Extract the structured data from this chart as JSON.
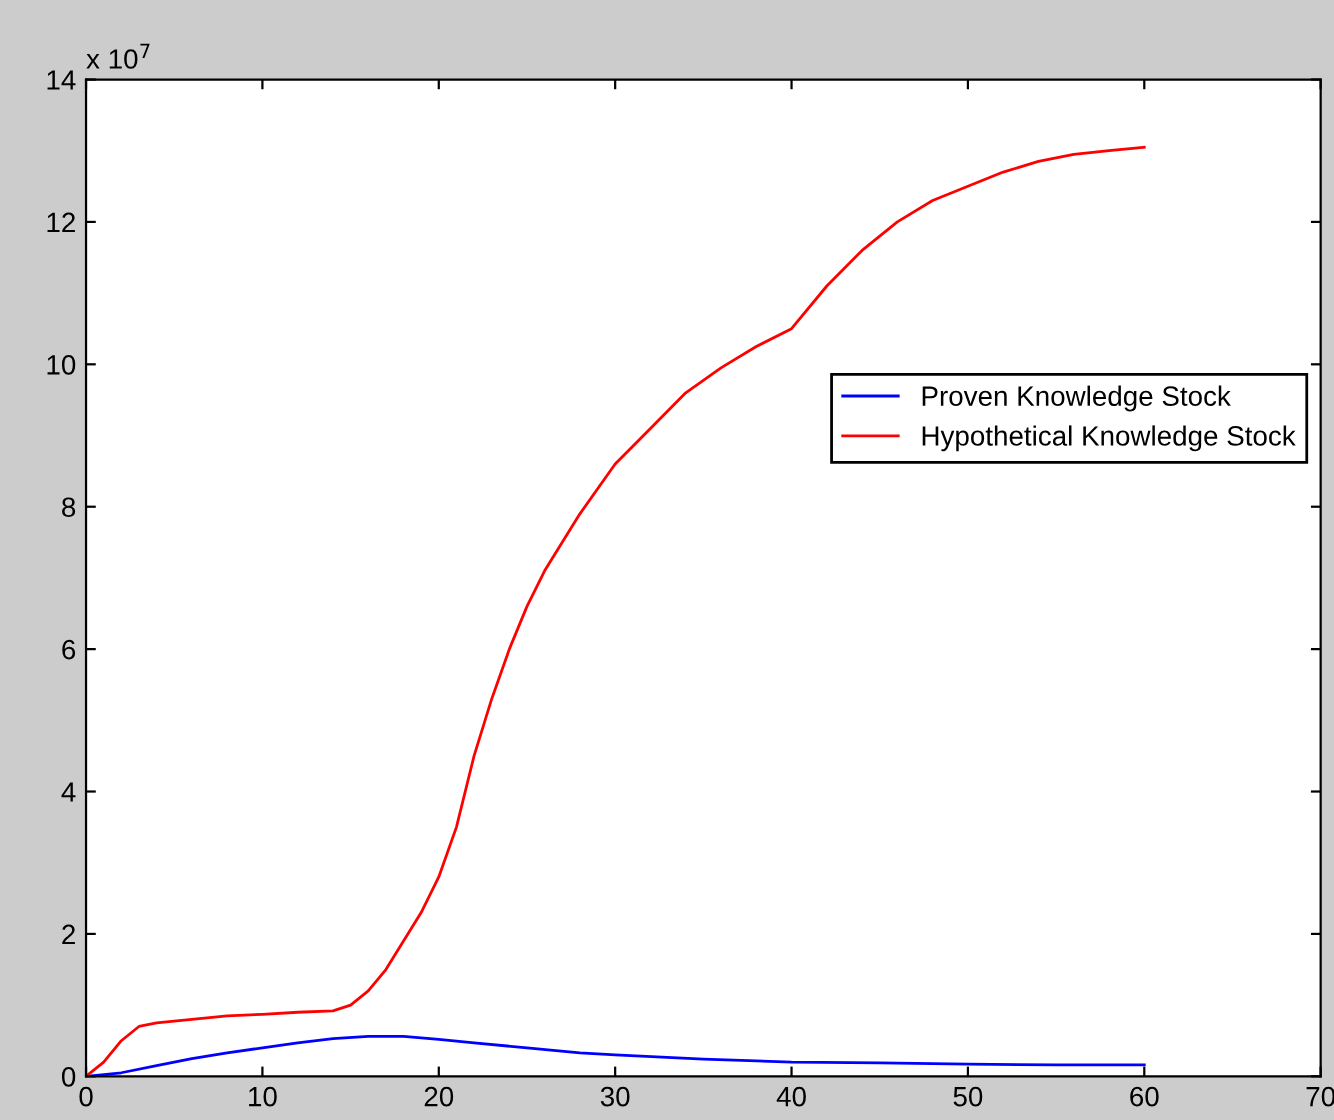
{
  "chart_data": {
    "type": "line",
    "annotations": [
      "x 10$^{7}$"
    ],
    "series": [
      {
        "name": "Proven Knowledge Stock",
        "color": "#0000ff",
        "x": [
          0,
          2,
          4,
          6,
          8,
          10,
          12,
          14,
          16,
          18,
          20,
          22,
          25,
          28,
          30,
          35,
          40,
          45,
          50,
          55,
          60
        ],
        "values": [
          0,
          0.05,
          0.15,
          0.25,
          0.33,
          0.4,
          0.47,
          0.53,
          0.56,
          0.56,
          0.52,
          0.47,
          0.4,
          0.33,
          0.3,
          0.24,
          0.2,
          0.19,
          0.17,
          0.16,
          0.16
        ]
      },
      {
        "name": "Hypothetical Knowledge Stock",
        "color": "#ff0000",
        "x": [
          0,
          1,
          2,
          3,
          4,
          6,
          8,
          10,
          12,
          14,
          15,
          16,
          17,
          18,
          19,
          20,
          21,
          22,
          23,
          24,
          25,
          26,
          28,
          30,
          32,
          34,
          36,
          38,
          40,
          42,
          44,
          46,
          48,
          50,
          52,
          54,
          56,
          58,
          60
        ],
        "values": [
          0,
          0.2,
          0.5,
          0.7,
          0.75,
          0.8,
          0.85,
          0.87,
          0.9,
          0.92,
          1.0,
          1.2,
          1.5,
          1.9,
          2.3,
          2.8,
          3.5,
          4.5,
          5.3,
          6.0,
          6.6,
          7.1,
          7.9,
          8.6,
          9.1,
          9.6,
          9.95,
          10.25,
          10.5,
          11.1,
          11.6,
          12.0,
          12.3,
          12.5,
          12.7,
          12.85,
          12.95,
          13.0,
          13.05
        ]
      }
    ],
    "xlim": [
      0,
      70
    ],
    "xticks": [
      0,
      10,
      20,
      30,
      40,
      50,
      60,
      70
    ],
    "ylim": [
      0,
      14
    ],
    "yticks": [
      0,
      2,
      4,
      6,
      8,
      10,
      12,
      14
    ],
    "grid": false,
    "legend": "right",
    "marker": "none",
    "line_style": "solid"
  }
}
